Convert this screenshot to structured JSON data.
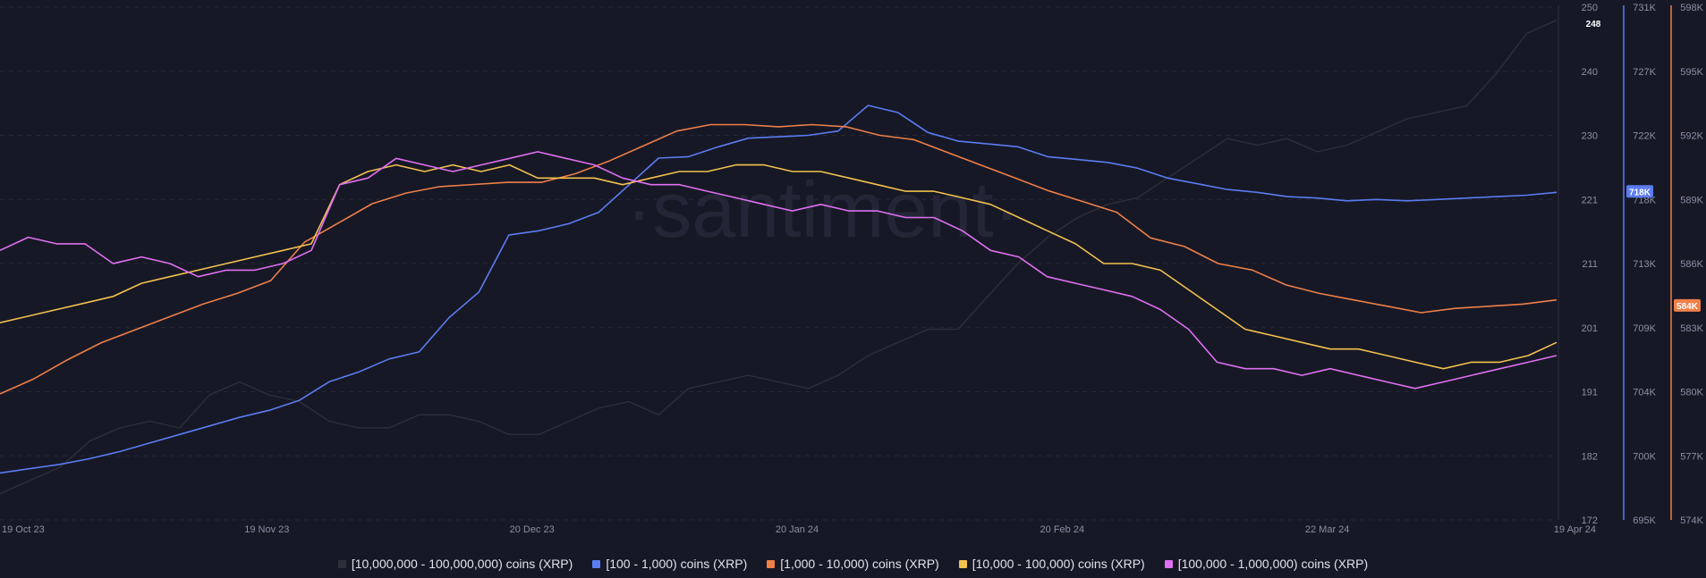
{
  "watermark": "·santiment·",
  "legend": [
    {
      "label": "[10,000,000 - 100,000,000) coins (XRP)",
      "color": "#2c2e38"
    },
    {
      "label": "[100 - 1,000) coins (XRP)",
      "color": "#5b7cf0"
    },
    {
      "label": "[1,000 - 10,000) coins (XRP)",
      "color": "#ee7f48"
    },
    {
      "label": "[10,000 - 100,000) coins (XRP)",
      "color": "#f2c14e"
    },
    {
      "label": "[100,000  - 1,000,000) coins (XRP)",
      "color": "#de6ff1"
    }
  ],
  "axes": {
    "x_ticks": [
      "19 Oct 23",
      "19 Nov 23",
      "20 Dec 23",
      "20 Jan 24",
      "20 Feb 24",
      "22 Mar 24",
      "19 Apr 24"
    ],
    "y_left_ticks": [
      "250",
      "240",
      "230",
      "221",
      "211",
      "201",
      "191",
      "182",
      "172"
    ],
    "y_blue_ticks": [
      "731K",
      "727K",
      "722K",
      "718K",
      "713K",
      "709K",
      "704K",
      "700K",
      "695K"
    ],
    "y_orange_ticks": [
      "598K",
      "595K",
      "592K",
      "589K",
      "586K",
      "583K",
      "580K",
      "577K",
      "574K"
    ],
    "badge_top": "248",
    "badge_blue": "718K",
    "badge_orange": "584K"
  },
  "chart_data": {
    "type": "line",
    "x_start": "2023-10-19",
    "x_end": "2024-04-19",
    "grid": true,
    "series": [
      {
        "name": "[10,000,000 - 100,000,000) coins (XRP)",
        "color": "#2c2e38",
        "axis": "left",
        "ylim": [
          172,
          250
        ],
        "values": [
          176,
          178,
          180,
          184,
          186,
          187,
          186,
          191,
          193,
          191,
          190,
          187,
          186,
          186,
          188,
          188,
          187,
          185,
          185,
          187,
          189,
          190,
          188,
          192,
          193,
          194,
          193,
          192,
          194,
          197,
          199,
          201,
          201,
          206,
          211,
          215,
          218,
          220,
          221,
          224,
          227,
          230,
          229,
          230,
          228,
          229,
          231,
          233,
          234,
          235,
          240,
          246,
          248
        ]
      },
      {
        "name": "[100 - 1,000) coins (XRP)",
        "color": "#5b7cf0",
        "axis": "blue",
        "ylim": [
          695,
          731
        ],
        "values": [
          698.3,
          698.6,
          698.9,
          699.3,
          699.8,
          700.4,
          701.0,
          701.6,
          702.2,
          702.7,
          703.4,
          704.7,
          705.4,
          706.3,
          706.8,
          709.2,
          711.0,
          715.0,
          715.3,
          715.8,
          716.6,
          718.5,
          720.4,
          720.5,
          721.2,
          721.8,
          721.9,
          722.0,
          722.3,
          724.1,
          723.6,
          722.2,
          721.6,
          721.4,
          721.2,
          720.5,
          720.3,
          720.1,
          719.7,
          719.0,
          718.6,
          718.2,
          718.0,
          717.7,
          717.6,
          717.4,
          717.5,
          717.4,
          717.5,
          717.6,
          717.7,
          717.8,
          718.0
        ]
      },
      {
        "name": "[1,000 - 10,000) coins (XRP)",
        "color": "#ee7f48",
        "axis": "orange",
        "ylim": [
          574,
          598
        ],
        "values": [
          579.9,
          580.6,
          581.5,
          582.3,
          582.9,
          583.5,
          584.1,
          584.6,
          585.2,
          587.0,
          587.9,
          588.8,
          589.3,
          589.6,
          589.7,
          589.8,
          589.8,
          590.2,
          590.8,
          591.5,
          592.2,
          592.5,
          592.5,
          592.4,
          592.5,
          592.4,
          592.0,
          591.8,
          591.2,
          590.6,
          590.0,
          589.4,
          588.9,
          588.4,
          587.2,
          586.8,
          586.0,
          585.7,
          585.0,
          584.6,
          584.3,
          584.0,
          583.7,
          583.9,
          584.0,
          584.1,
          584.3
        ]
      },
      {
        "name": "[10,000 - 100,000) coins (XRP)",
        "color": "#f2c14e",
        "axis": "left",
        "ylim": [
          172,
          250
        ],
        "values": [
          202,
          203,
          204,
          205,
          206,
          208,
          209,
          210,
          211,
          212,
          213,
          214,
          223,
          225,
          226,
          225,
          226,
          225,
          226,
          224,
          224,
          224,
          223,
          224,
          225,
          225,
          226,
          226,
          225,
          225,
          224,
          223,
          222,
          222,
          221,
          220,
          218,
          216,
          214,
          211,
          211,
          210,
          207,
          204,
          201,
          200,
          199,
          198,
          198,
          197,
          196,
          195,
          196,
          196,
          197,
          199
        ]
      },
      {
        "name": "[100,000  - 1,000,000) coins (XRP)",
        "color": "#de6ff1",
        "axis": "left",
        "ylim": [
          172,
          250
        ],
        "values": [
          213,
          215,
          214,
          214,
          211,
          212,
          211,
          209,
          210,
          210,
          211,
          213,
          223,
          224,
          227,
          226,
          225,
          226,
          227,
          228,
          227,
          226,
          224,
          223,
          223,
          222,
          221,
          220,
          219,
          220,
          219,
          219,
          218,
          218,
          216,
          213,
          212,
          209,
          208,
          207,
          206,
          204,
          201,
          196,
          195,
          195,
          194,
          195,
          194,
          193,
          192,
          193,
          194,
          195,
          196,
          197
        ]
      }
    ]
  }
}
